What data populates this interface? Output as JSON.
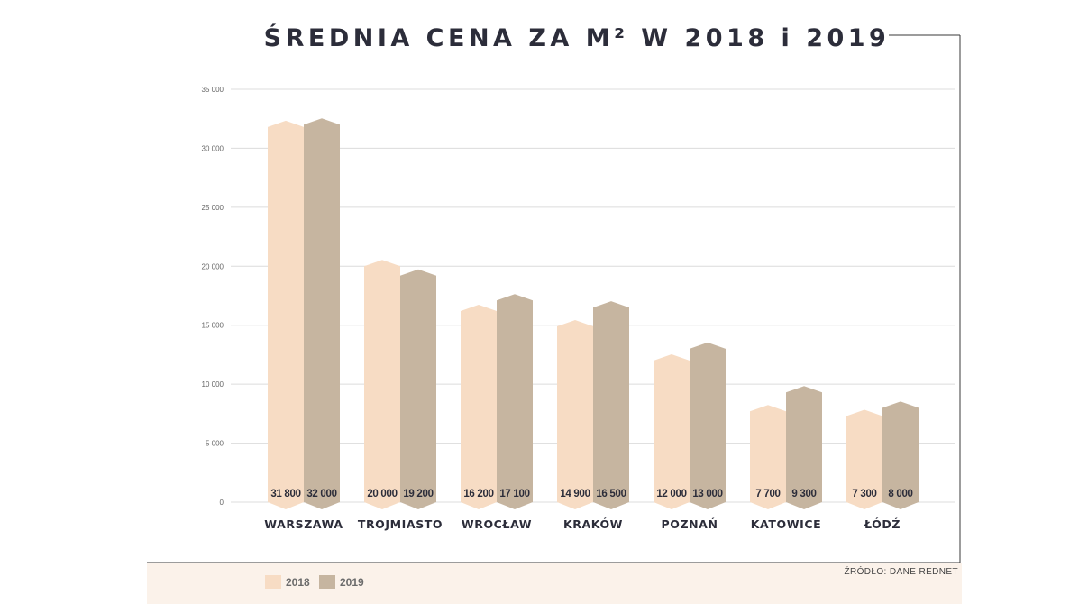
{
  "chart_data": {
    "type": "bar",
    "title": "ŚREDNIA CENA ZA M² W 2018 i 2019",
    "categories": [
      "WARSZAWA",
      "TROJMIASTO",
      "WROCŁAW",
      "KRAKÓW",
      "POZNAŃ",
      "KATOWICE",
      "ŁÓDŹ"
    ],
    "series": [
      {
        "name": "2018",
        "color": "#f7dcc4",
        "values": [
          31800,
          20000,
          16200,
          14900,
          12000,
          7700,
          7300
        ],
        "labels": [
          "31 800",
          "20 000",
          "16 200",
          "14 900",
          "12 000",
          "7 700",
          "7 300"
        ]
      },
      {
        "name": "2019",
        "color": "#c6b5a0",
        "values": [
          32000,
          19200,
          17100,
          16500,
          13000,
          9300,
          8000
        ],
        "labels": [
          "32 000",
          "19 200",
          "17 100",
          "16 500",
          "13 000",
          "9 300",
          "8 000"
        ]
      }
    ],
    "ylim": [
      0,
      35000
    ],
    "yticks": [
      0,
      5000,
      10000,
      15000,
      20000,
      25000,
      30000,
      35000
    ],
    "ytick_labels": [
      "0",
      "5 000",
      "10 000",
      "15 000",
      "20 000",
      "25 000",
      "30 000",
      "35 000"
    ],
    "xlabel": "",
    "ylabel": "",
    "grid": true,
    "legend_position": "bottom-left",
    "source": "ŹRÓDŁO: DANE REDNET"
  },
  "colors": {
    "text": "#2c2d3a",
    "grid": "#dcdcdc",
    "frame": "#3a3a3a",
    "footer_band": "#fbf2ea"
  }
}
